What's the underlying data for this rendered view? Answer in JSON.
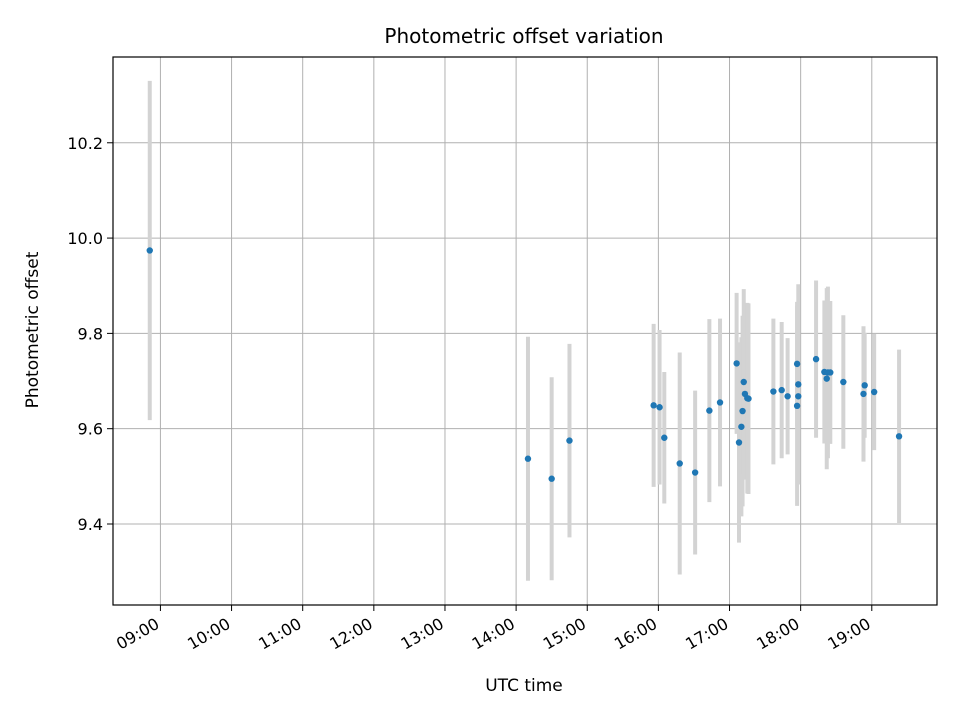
{
  "chart_data": {
    "type": "scatter",
    "title": "Photometric offset variation",
    "xlabel": "UTC time",
    "ylabel": "Photometric offset",
    "x_ticks": [
      "09:00",
      "10:00",
      "11:00",
      "12:00",
      "13:00",
      "14:00",
      "15:00",
      "16:00",
      "17:00",
      "18:00",
      "19:00"
    ],
    "y_ticks": [
      "9.4",
      "9.6",
      "9.8",
      "10.0",
      "10.2"
    ],
    "xlim": [
      "08:20",
      "19:55"
    ],
    "ylim": [
      9.23,
      10.38
    ],
    "grid": true,
    "point_color": "#1f77b4",
    "errorbar_color": "#d3d3d3",
    "points": [
      {
        "x": "08:51",
        "y": 9.974,
        "err": 0.356
      },
      {
        "x": "14:10",
        "y": 9.537,
        "err": 0.256
      },
      {
        "x": "14:30",
        "y": 9.495,
        "err": 0.213
      },
      {
        "x": "14:45",
        "y": 9.575,
        "err": 0.203
      },
      {
        "x": "15:56",
        "y": 9.649,
        "err": 0.171
      },
      {
        "x": "16:01",
        "y": 9.645,
        "err": 0.162
      },
      {
        "x": "16:05",
        "y": 9.581,
        "err": 0.138
      },
      {
        "x": "16:18",
        "y": 9.527,
        "err": 0.233
      },
      {
        "x": "16:31",
        "y": 9.508,
        "err": 0.172
      },
      {
        "x": "16:43",
        "y": 9.638,
        "err": 0.192
      },
      {
        "x": "16:52",
        "y": 9.655,
        "err": 0.176
      },
      {
        "x": "17:06",
        "y": 9.737,
        "err": 0.148
      },
      {
        "x": "17:08",
        "y": 9.571,
        "err": 0.21
      },
      {
        "x": "17:10",
        "y": 9.604,
        "err": 0.188
      },
      {
        "x": "17:11",
        "y": 9.637,
        "err": 0.2
      },
      {
        "x": "17:12",
        "y": 9.698,
        "err": 0.195
      },
      {
        "x": "17:13",
        "y": 9.673,
        "err": 0.18
      },
      {
        "x": "17:15",
        "y": 9.664,
        "err": 0.2
      },
      {
        "x": "17:16",
        "y": 9.663,
        "err": 0.2
      },
      {
        "x": "17:37",
        "y": 9.678,
        "err": 0.153
      },
      {
        "x": "17:44",
        "y": 9.681,
        "err": 0.143
      },
      {
        "x": "17:49",
        "y": 9.668,
        "err": 0.122
      },
      {
        "x": "17:57",
        "y": 9.736,
        "err": 0.13
      },
      {
        "x": "17:57",
        "y": 9.648,
        "err": 0.21
      },
      {
        "x": "17:58",
        "y": 9.693,
        "err": 0.21
      },
      {
        "x": "17:58",
        "y": 9.668,
        "err": 0.16
      },
      {
        "x": "18:13",
        "y": 9.746,
        "err": 0.165
      },
      {
        "x": "18:20",
        "y": 9.719,
        "err": 0.15
      },
      {
        "x": "18:22",
        "y": 9.705,
        "err": 0.19
      },
      {
        "x": "18:23",
        "y": 9.718,
        "err": 0.18
      },
      {
        "x": "18:25",
        "y": 9.718,
        "err": 0.15
      },
      {
        "x": "18:36",
        "y": 9.698,
        "err": 0.14
      },
      {
        "x": "18:53",
        "y": 9.673,
        "err": 0.142
      },
      {
        "x": "18:54",
        "y": 9.691,
        "err": 0.11
      },
      {
        "x": "19:02",
        "y": 9.677,
        "err": 0.122
      },
      {
        "x": "19:23",
        "y": 9.584,
        "err": 0.182
      }
    ]
  }
}
